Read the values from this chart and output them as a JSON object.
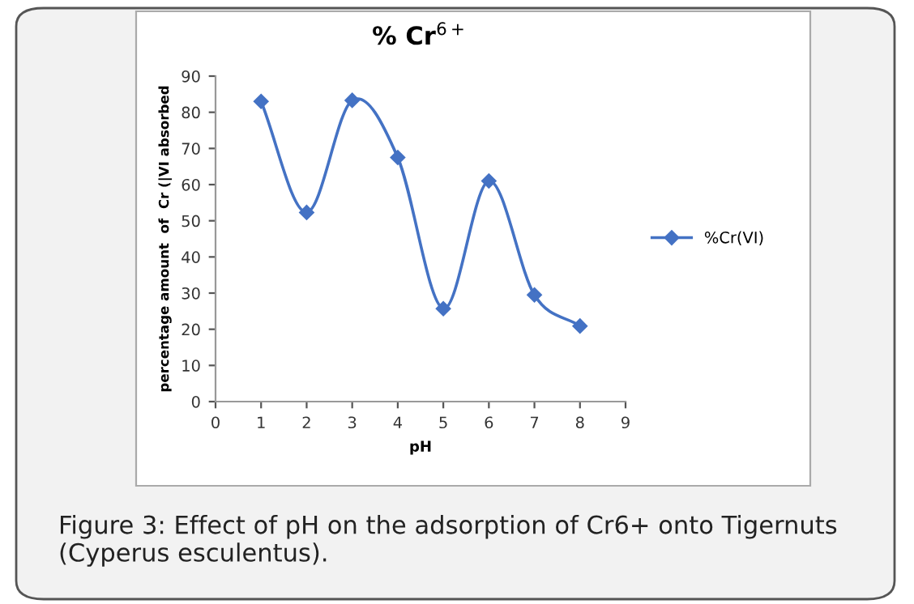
{
  "chart_data": {
    "type": "line",
    "title": "% Cr$^{6+}$",
    "xlabel": "pH",
    "ylabel": "percentage amount  of  Cr (|VI absorbed",
    "x": [
      1,
      2,
      3,
      4,
      5,
      6,
      7,
      8
    ],
    "series": [
      {
        "name": "%Cr(VI)",
        "color": "#4472c4",
        "values": [
          83,
          52.3,
          83.3,
          67.5,
          25.7,
          61,
          29.5,
          20.9
        ]
      }
    ],
    "xlim": [
      0,
      9
    ],
    "xticks": [
      0,
      1,
      2,
      3,
      4,
      5,
      6,
      7,
      8,
      9
    ],
    "ylim": [
      0,
      90
    ],
    "yticks": [
      0,
      10,
      20,
      30,
      40,
      50,
      60,
      70,
      80,
      90
    ],
    "grid": false,
    "legend": "right",
    "marker": "diamond",
    "line_style": "solid",
    "annotations": [
      "Figure 3: Effect of pH on the adsorption of Cr6+ onto Tigernuts (Cyperus esculentus)."
    ]
  }
}
